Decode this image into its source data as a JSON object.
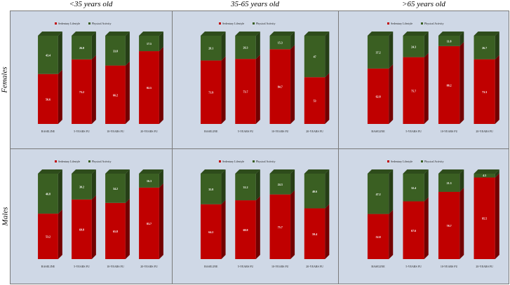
{
  "column_headers": [
    "<35 years old",
    "35-65 years old",
    ">65 years old"
  ],
  "row_headers": [
    "Females",
    "Males"
  ],
  "colors": {
    "sedentary": "#c00000",
    "physical": "#3a5f22",
    "panel_bg": "#cfd8e6"
  },
  "chart_data": [
    {
      "type": "bar",
      "panel": "Females, <35 years old",
      "categories": [
        "BASELINE",
        "5-YEARS FU",
        "10-YEARS FU",
        "20-YEARS FU"
      ],
      "series": [
        {
          "name": "Sedentary Lifestyle",
          "values": [
            56.6,
            73.2,
            66.2,
            82.5
          ]
        },
        {
          "name": "Physical Activity",
          "values": [
            43.4,
            26.8,
            33.8,
            17.5
          ]
        }
      ],
      "ylim": [
        0,
        100
      ],
      "legend": "top-center",
      "value_labels": {
        "Sedentary Lifestyle": [
          "56.6",
          "73.2",
          "66.2",
          "82.5"
        ],
        "Physical Activity": [
          "43.4",
          "26.8",
          "33.8",
          "17.5"
        ]
      }
    },
    {
      "type": "bar",
      "panel": "Females, 35-65 years old",
      "categories": [
        "BASELINE",
        "5-YEARS FU",
        "10-YEARS FU",
        "20-YEARS FU"
      ],
      "series": [
        {
          "name": "Sedentary Lifestyle",
          "values": [
            71.9,
            73.7,
            84.7,
            53
          ]
        },
        {
          "name": "Physical Activity",
          "values": [
            28.1,
            26.3,
            15.3,
            47
          ]
        }
      ],
      "ylim": [
        0,
        100
      ],
      "legend": "top-center",
      "value_labels": {
        "Sedentary Lifestyle": [
          "71.9",
          "73.7",
          "84.7",
          "53"
        ],
        "Physical Activity": [
          "28.1",
          "26.3",
          "15.3",
          "47"
        ]
      }
    },
    {
      "type": "bar",
      "panel": "Females, >65 years old",
      "categories": [
        "BASELINE",
        "5-YEARS FU",
        "10-YEARS FU",
        "20-YEARS FU"
      ],
      "series": [
        {
          "name": "Sedentary Lifestyle",
          "values": [
            62.8,
            75.7,
            88.2,
            73.3
          ]
        },
        {
          "name": "Physical Activity",
          "values": [
            37.2,
            24.3,
            11.8,
            26.7
          ]
        }
      ],
      "ylim": [
        0,
        100
      ],
      "legend": "top-center",
      "value_labels": {
        "Sedentary Lifestyle": [
          "62.8",
          "75.7",
          "88.2",
          "73.3"
        ],
        "Physical Activity": [
          "37.2",
          "24.3",
          "11.8",
          "26.7"
        ]
      }
    },
    {
      "type": "bar",
      "panel": "Males, <35 years old",
      "categories": [
        "BASELINE",
        "5-YEARS FU",
        "10-YEARS FU",
        "20-YEARS FU"
      ],
      "series": [
        {
          "name": "Sedentary Lifestyle",
          "values": [
            53.2,
            69.8,
            65.8,
            83.7
          ]
        },
        {
          "name": "Physical Activity",
          "values": [
            46.8,
            30.2,
            34.2,
            16.3
          ]
        }
      ],
      "ylim": [
        0,
        100
      ],
      "legend": "top-center",
      "value_labels": {
        "Sedentary Lifestyle": [
          "53.2",
          "69.8",
          "65.8",
          "83.7"
        ],
        "Physical Activity": [
          "46.8",
          "30.2",
          "34.2",
          "16.3"
        ]
      }
    },
    {
      "type": "bar",
      "panel": "Males, 35-65 years old",
      "categories": [
        "BASELINE",
        "5-YEARS FU",
        "10-YEARS FU",
        "20-YEARS FU"
      ],
      "series": [
        {
          "name": "Sedentary Lifestyle",
          "values": [
            64.2,
            68.8,
            75.7,
            59.4
          ]
        },
        {
          "name": "Physical Activity",
          "values": [
            35.8,
            31.2,
            24.3,
            40.6
          ]
        }
      ],
      "ylim": [
        0,
        100
      ],
      "legend": "top-center",
      "value_labels": {
        "Sedentary Lifestyle": [
          "64.2",
          "68.8",
          "75.7",
          "59.4"
        ],
        "Physical Activity": [
          "35.8",
          "31.2",
          "24.3",
          "40.6"
        ]
      }
    },
    {
      "type": "bar",
      "panel": "Males, >65 years old",
      "categories": [
        "BASELINE",
        "5-YEARS FU",
        "10-YEARS FU",
        "20-YEARS FU"
      ],
      "series": [
        {
          "name": "Sedentary Lifestyle",
          "values": [
            52.8,
            67.6,
            78.7,
            95.5
          ]
        },
        {
          "name": "Physical Activity",
          "values": [
            47.2,
            32.4,
            21.3,
            4.5
          ]
        }
      ],
      "ylim": [
        0,
        100
      ],
      "legend": "top-center",
      "value_labels": {
        "Sedentary Lifestyle": [
          "52.8",
          "67.6",
          "78.7",
          "95.5"
        ],
        "Physical Activity": [
          "47.2",
          "32.4",
          "21.3",
          "4.5"
        ]
      }
    }
  ]
}
